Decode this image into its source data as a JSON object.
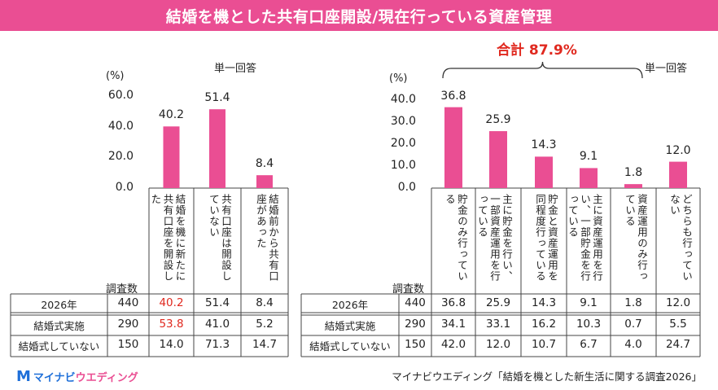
{
  "title": "結婚を機とした共有口座開設/現在行っている資産管理",
  "colors": {
    "accent": "#ea4e93",
    "highlight": "#e0291f"
  },
  "unit_label": "(%)",
  "answer_type": "単一回答",
  "count_header": "調査数",
  "total_label": "合計 87.9%",
  "rows": [
    {
      "label": "2026年",
      "count": "440"
    },
    {
      "label": "結婚式実施",
      "count": "290"
    },
    {
      "label": "結婚式していない",
      "count": "150"
    }
  ],
  "chart_data": [
    {
      "type": "bar",
      "title": "結婚を機とした共有口座開設",
      "ylabel": "(%)",
      "ylim": [
        0,
        60
      ],
      "yticks": [
        "0.0",
        "20.0",
        "40.0",
        "60.0"
      ],
      "categories": [
        "結婚を機に新たに共有口座を開設した",
        "共有口座は開設していない",
        "結婚前から共有口座があった"
      ],
      "values": [
        40.2,
        51.4,
        8.4
      ],
      "value_labels": [
        "40.2",
        "51.4",
        "8.4"
      ],
      "table": [
        [
          "40.2",
          "51.4",
          "8.4"
        ],
        [
          "53.8",
          "41.0",
          "5.2"
        ],
        [
          "14.0",
          "71.3",
          "14.7"
        ]
      ],
      "highlight_cells": [
        [
          0,
          0
        ],
        [
          1,
          0
        ]
      ]
    },
    {
      "type": "bar",
      "title": "現在行っている資産管理",
      "ylabel": "(%)",
      "ylim": [
        0,
        40
      ],
      "yticks": [
        "0.0",
        "10.0",
        "20.0",
        "30.0",
        "40.0"
      ],
      "categories": [
        "貯金のみ行っている",
        "主に貯金を行い、一部資産運用を行っている",
        "貯金と資産運用を同程度行っている",
        "主に資産運用を行い、一部貯金を行っている",
        "資産運用のみ行っている",
        "どちらも行っていない"
      ],
      "values": [
        36.8,
        25.9,
        14.3,
        9.1,
        1.8,
        12.0
      ],
      "value_labels": [
        "36.8",
        "25.9",
        "14.3",
        "9.1",
        "1.8",
        "12.0"
      ],
      "table": [
        [
          "36.8",
          "25.9",
          "14.3",
          "9.1",
          "1.8",
          "12.0"
        ],
        [
          "34.1",
          "33.1",
          "16.2",
          "10.3",
          "0.7",
          "5.5"
        ],
        [
          "42.0",
          "12.0",
          "10.7",
          "6.7",
          "4.0",
          "24.7"
        ]
      ],
      "highlight_cells": []
    }
  ],
  "footer": {
    "logo_mark": "M",
    "logo_text_a": "マイナビ",
    "logo_text_b": "ウエディング",
    "source": "マイナビウエディング「結婚を機とした新生活に関する調査2026」"
  }
}
